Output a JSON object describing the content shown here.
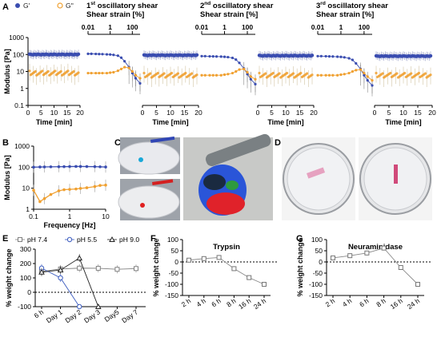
{
  "panel_labels": {
    "a": "A",
    "b": "B",
    "c": "C",
    "d": "D",
    "e": "E",
    "f": "F",
    "g": "G"
  },
  "colors": {
    "g_prime": "#3a4db0",
    "g_double": "#f0a030",
    "grey": "#808080",
    "blue": "#3a5bbf",
    "black": "#222222"
  },
  "chart_data": [
    {
      "id": "A",
      "type": "scatter",
      "legend": [
        {
          "name": "G'",
          "marker": "filled-circle",
          "color": "#3a4db0"
        },
        {
          "name": "G''",
          "marker": "open-circle",
          "color": "#f0a030"
        }
      ],
      "ylabel": "Modulus [Pa]",
      "yscale": "log",
      "ylim": [
        0.1,
        1000
      ],
      "yticks": [
        "0.1",
        "1",
        "10",
        "100",
        "1000"
      ],
      "xlabel": "Time [min]",
      "time_xticks": [
        "0",
        "5",
        "10",
        "15",
        "20"
      ],
      "strain_xticks": [
        "0.01",
        "1",
        "100"
      ],
      "segments": [
        {
          "kind": "time",
          "xlim": [
            0,
            20
          ],
          "G_prime": 100,
          "G_double": 8
        },
        {
          "kind": "strain",
          "title_pre": "1",
          "title_sup": "st",
          "title_post": " oscillatory shear",
          "subtitle": "Shear strain [%]",
          "strain": [
            0.01,
            0.02,
            0.05,
            0.1,
            0.2,
            0.5,
            1,
            2,
            5,
            10,
            20,
            50,
            100,
            200,
            500
          ],
          "G_prime": [
            110,
            110,
            108,
            106,
            105,
            102,
            100,
            95,
            85,
            65,
            40,
            18,
            8,
            4,
            2
          ],
          "G_double": [
            8,
            8,
            8,
            8,
            8,
            8,
            8.5,
            9,
            11,
            14,
            18,
            16,
            10,
            6,
            4
          ]
        },
        {
          "kind": "time",
          "xlim": [
            0,
            20
          ],
          "G_prime": 90,
          "G_double": 6
        },
        {
          "kind": "strain",
          "title_pre": "2",
          "title_sup": "nd",
          "title_post": " oscillatory shear",
          "subtitle": "Shear strain [%]",
          "strain": [
            0.01,
            0.02,
            0.05,
            0.1,
            0.2,
            0.5,
            1,
            2,
            5,
            10,
            20,
            50,
            100,
            200,
            500
          ],
          "G_prime": [
            80,
            80,
            78,
            77,
            76,
            75,
            73,
            70,
            63,
            50,
            32,
            15,
            7,
            3.5,
            1.8
          ],
          "G_double": [
            6,
            6,
            6,
            6,
            6,
            6,
            6.5,
            7,
            8,
            10,
            13,
            14,
            9,
            5,
            3.5
          ]
        },
        {
          "kind": "time",
          "xlim": [
            0,
            20
          ],
          "G_prime": 85,
          "G_double": 6
        },
        {
          "kind": "strain",
          "title_pre": "3",
          "title_sup": "rd",
          "title_post": " oscillatory shear",
          "subtitle": "Shear strain [%]",
          "strain": [
            0.01,
            0.02,
            0.05,
            0.1,
            0.2,
            0.5,
            1,
            2,
            5,
            10,
            20,
            50,
            100,
            200,
            500
          ],
          "G_prime": [
            80,
            80,
            79,
            77,
            76,
            74,
            72,
            68,
            60,
            48,
            30,
            14,
            6,
            3,
            1.5
          ],
          "G_double": [
            6,
            6,
            6,
            6,
            6,
            6,
            6.5,
            7,
            8,
            10,
            12,
            13,
            8,
            5,
            3
          ]
        },
        {
          "kind": "time",
          "xlim": [
            0,
            20
          ],
          "G_prime": 80,
          "G_double": 6
        }
      ]
    },
    {
      "id": "B",
      "type": "line",
      "ylabel": "Modulus [Pa]",
      "xlabel": "Frequency [Hz]",
      "yscale": "log",
      "xscale": "log",
      "ylim": [
        1,
        1000
      ],
      "xlim": [
        0.1,
        10
      ],
      "yticks": [
        "1",
        "10",
        "100",
        "1000"
      ],
      "xticks": [
        "0.1",
        "1",
        "10"
      ],
      "x": [
        0.1,
        0.15,
        0.2,
        0.3,
        0.5,
        0.7,
        1,
        1.5,
        2,
        3,
        5,
        7,
        10
      ],
      "series": [
        {
          "name": "G'",
          "values": [
            100,
            102,
            103,
            104,
            105,
            106,
            107,
            108,
            108,
            107,
            106,
            104,
            102
          ]
        },
        {
          "name": "G''",
          "values": [
            8,
            2.3,
            3.2,
            5,
            7.5,
            8.5,
            8.8,
            9.2,
            9.8,
            10.5,
            12,
            13.5,
            14
          ]
        }
      ]
    },
    {
      "id": "E",
      "type": "line",
      "ylabel": "% weight change",
      "ylim": [
        -100,
        300
      ],
      "yticks": [
        "-100",
        "0",
        "100",
        "200",
        "300"
      ],
      "categories": [
        "6 h",
        "Day 1",
        "Day 2",
        "Day 3",
        "Day5",
        "Day 7"
      ],
      "series": [
        {
          "name": "pH 7.4",
          "values": [
            145,
            162,
            168,
            167,
            160,
            165
          ]
        },
        {
          "name": "pH 5.5",
          "values": [
            168,
            100,
            -100,
            null,
            null,
            null
          ]
        },
        {
          "name": "pH 9.0",
          "values": [
            140,
            155,
            238,
            -100,
            null,
            null
          ]
        }
      ]
    },
    {
      "id": "F",
      "type": "line",
      "title": "Trypsin",
      "ylabel": "% weight change",
      "ylim": [
        -150,
        100
      ],
      "yticks": [
        "-150",
        "-100",
        "-50",
        "0",
        "50",
        "100"
      ],
      "categories": [
        "2 h",
        "4 h",
        "6 h",
        "8 h",
        "16 h",
        "24 h"
      ],
      "values": [
        8,
        15,
        20,
        -30,
        -70,
        -100
      ]
    },
    {
      "id": "G",
      "type": "line",
      "title": "Neuraminidase",
      "ylabel": "% weight change",
      "ylim": [
        -150,
        100
      ],
      "yticks": [
        "-150",
        "-100",
        "-50",
        "0",
        "50",
        "100"
      ],
      "categories": [
        "2 h",
        "4 h",
        "6 h",
        "8 h",
        "16 h",
        "24 h"
      ],
      "values": [
        18,
        28,
        40,
        62,
        -25,
        -100
      ]
    }
  ]
}
